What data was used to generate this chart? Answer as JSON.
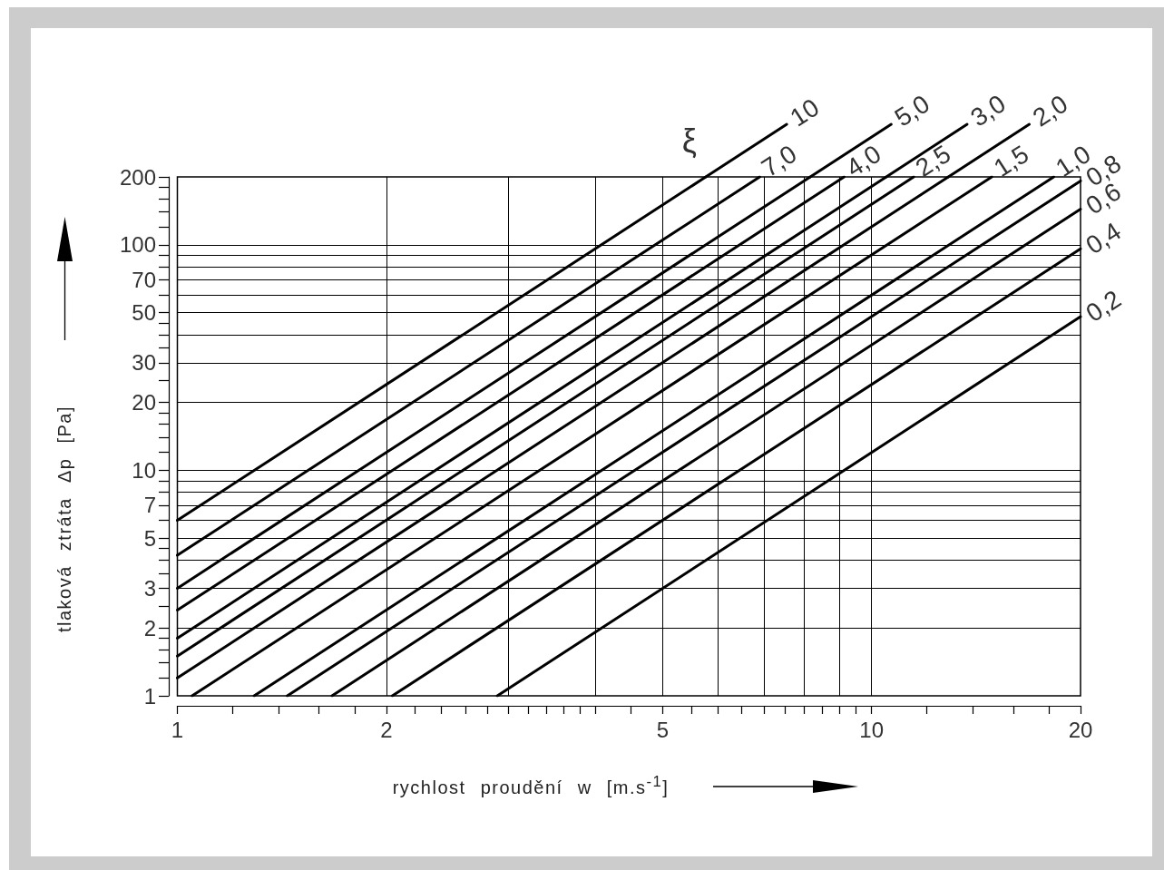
{
  "chart_data": {
    "type": "line",
    "xlabel": "rychlost proudění w [m.s$^{-1}$]",
    "ylabel": "tlaková ztráta Δp [Pa]",
    "legend_title": "ξ",
    "log": "xy",
    "grid": true,
    "marker": "none",
    "line_style": "solid",
    "xlim": [
      1,
      20
    ],
    "xticks": [
      1,
      {
        "value": 1.2,
        "label": null
      },
      {
        "value": 1.4,
        "label": null
      },
      {
        "value": 1.6,
        "label": null
      },
      {
        "value": 1.8,
        "label": null
      },
      2,
      {
        "value": 2.2,
        "label": null
      },
      {
        "value": 2.4,
        "label": null
      },
      {
        "value": 2.6,
        "label": null
      },
      {
        "value": 2.8,
        "label": null
      },
      {
        "value": 3,
        "label": null
      },
      {
        "value": 3.2,
        "label": null
      },
      {
        "value": 3.4,
        "label": null
      },
      {
        "value": 3.6,
        "label": null
      },
      {
        "value": 3.8,
        "label": null
      },
      {
        "value": 4,
        "label": null
      },
      {
        "value": 4.5,
        "label": null
      },
      5,
      {
        "value": 5.5,
        "label": null
      },
      {
        "value": 6,
        "label": null
      },
      {
        "value": 6.5,
        "label": null
      },
      {
        "value": 7,
        "label": null
      },
      {
        "value": 7.5,
        "label": null
      },
      {
        "value": 8,
        "label": null
      },
      {
        "value": 8.5,
        "label": null
      },
      {
        "value": 9,
        "label": null
      },
      {
        "value": 9.5,
        "label": null
      },
      10,
      {
        "value": 12,
        "label": null
      },
      {
        "value": 14,
        "label": null
      },
      {
        "value": 16,
        "label": null
      },
      {
        "value": 18,
        "label": null
      },
      20
    ],
    "ylim": [
      1,
      200
    ],
    "yticks": [
      1,
      {
        "value": 1.2,
        "label": null
      },
      {
        "value": 1.4,
        "label": null
      },
      {
        "value": 1.6,
        "label": null
      },
      {
        "value": 1.8,
        "label": null
      },
      2,
      {
        "value": 2.5,
        "label": null
      },
      3,
      {
        "value": 3.5,
        "label": null
      },
      {
        "value": 4,
        "label": null
      },
      {
        "value": 4.5,
        "label": null
      },
      5,
      {
        "value": 6,
        "label": null
      },
      7,
      {
        "value": 8,
        "label": null
      },
      {
        "value": 9,
        "label": null
      },
      10,
      {
        "value": 12,
        "label": null
      },
      {
        "value": 14,
        "label": null
      },
      {
        "value": 16,
        "label": null
      },
      {
        "value": 18,
        "label": null
      },
      20,
      {
        "value": 25,
        "label": null
      },
      30,
      {
        "value": 35,
        "label": null
      },
      {
        "value": 40,
        "label": null
      },
      {
        "value": 45,
        "label": null
      },
      50,
      {
        "value": 60,
        "label": null
      },
      70,
      {
        "value": 80,
        "label": null
      },
      {
        "value": 90,
        "label": null
      },
      100,
      {
        "value": 120,
        "label": null
      },
      {
        "value": 140,
        "label": null
      },
      {
        "value": 160,
        "label": null
      },
      {
        "value": 180,
        "label": null
      },
      200
    ],
    "series": [
      {
        "name": "10",
        "color": "#000000",
        "x": [
          1,
          5.77
        ],
        "values": [
          6,
          200
        ]
      },
      {
        "name": "7,0",
        "color": "#000000",
        "x": [
          1,
          6.9
        ],
        "values": [
          4.2,
          200
        ]
      },
      {
        "name": "5,0",
        "color": "#000000",
        "x": [
          1,
          8.16
        ],
        "values": [
          3,
          200
        ]
      },
      {
        "name": "4,0",
        "color": "#000000",
        "x": [
          1,
          9.13
        ],
        "values": [
          2.4,
          200
        ]
      },
      {
        "name": "3,0",
        "color": "#000000",
        "x": [
          1,
          10.5
        ],
        "values": [
          1.8,
          200
        ]
      },
      {
        "name": "2,5",
        "color": "#000000",
        "x": [
          1,
          11.5
        ],
        "values": [
          1.5,
          200
        ]
      },
      {
        "name": "2,0",
        "color": "#000000",
        "x": [
          1,
          12.9
        ],
        "values": [
          1.2,
          200
        ]
      },
      {
        "name": "1,5",
        "color": "#000000",
        "x": [
          1.05,
          14.9
        ],
        "values": [
          1,
          200
        ]
      },
      {
        "name": "1,0",
        "color": "#000000",
        "x": [
          1.29,
          18.3
        ],
        "values": [
          1,
          200
        ]
      },
      {
        "name": "0,8",
        "color": "#000000",
        "x": [
          1.44,
          20
        ],
        "values": [
          1,
          192
        ]
      },
      {
        "name": "0,6",
        "color": "#000000",
        "x": [
          1.67,
          20
        ],
        "values": [
          1,
          144
        ]
      },
      {
        "name": "0,4",
        "color": "#000000",
        "x": [
          2.04,
          20
        ],
        "values": [
          1,
          96
        ]
      },
      {
        "name": "0,2",
        "color": "#000000",
        "x": [
          2.89,
          20
        ],
        "values": [
          1,
          48
        ]
      }
    ]
  }
}
